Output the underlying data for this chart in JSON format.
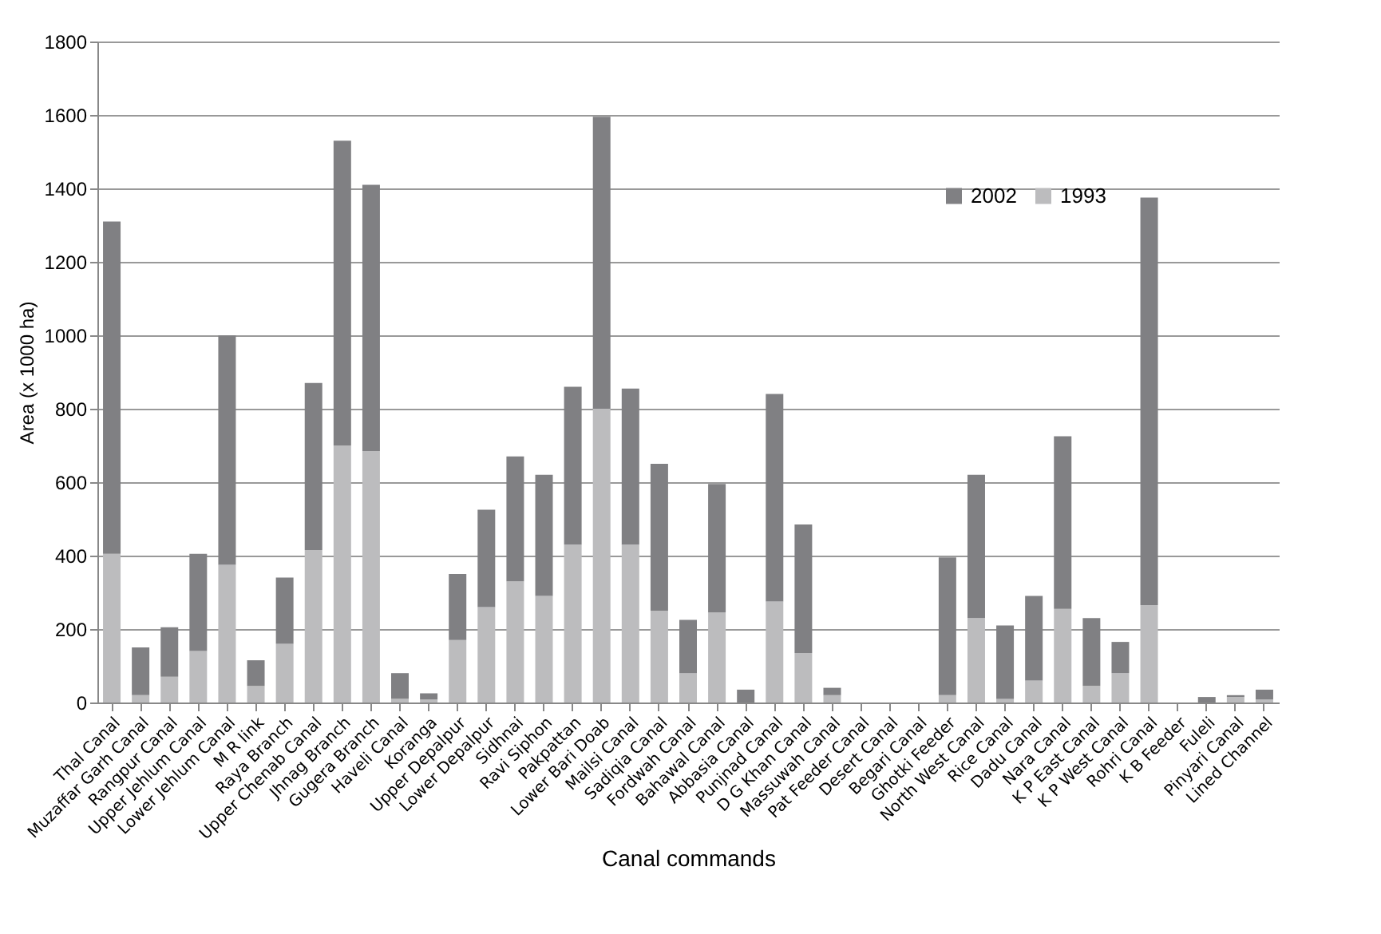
{
  "chart_data": {
    "type": "bar",
    "stacked": true,
    "xlabel": "Canal commands",
    "ylabel": "Area (x 1000 ha)",
    "categories": [
      "Thal Canal",
      "Muzaffar Garh Canal",
      "Rangpur Canal",
      "Upper Jehlum Canal",
      "Lower Jehlum Canal",
      "M R link",
      "Raya Branch",
      "Upper Chenab Canal",
      "Jhnag Branch",
      "Gugera Branch",
      "Haveli Canal",
      "Koranga",
      "Upper Depalpur",
      "Lower Depalpur",
      "Sidhnai",
      "Ravi Siphon",
      "Pakpattan",
      "Lower Bari Doab",
      "Mailsi Canal",
      "Sadiqia Canal",
      "Fordwah Canal",
      "Bahawal Canal",
      "Abbasia Canal",
      "Punjnad Canal",
      "D G Khan Canal",
      "Massuwah Canal",
      "Pat Feeder Canal",
      "Desert Canal",
      "Begari Canal",
      "Ghotki Feeder",
      "North West Canal",
      "Rice Canal",
      "Dadu Canal",
      "Nara Canal",
      "K P East Canal",
      "K P West Canal",
      "Rohri Canal",
      "K B Feeder",
      "Fuleli",
      "Pinyari Canal",
      "Lined Channel"
    ],
    "series": [
      {
        "name": "1993",
        "color": "#bcbcbe",
        "values": [
          405,
          20,
          70,
          140,
          375,
          45,
          160,
          415,
          700,
          685,
          10,
          8,
          170,
          260,
          330,
          290,
          430,
          800,
          430,
          250,
          80,
          245,
          0,
          275,
          135,
          20,
          0,
          0,
          0,
          20,
          230,
          10,
          60,
          255,
          45,
          80,
          265,
          0,
          0,
          15,
          8
        ]
      },
      {
        "name": "2002",
        "color": "#808083",
        "values": [
          905,
          130,
          135,
          265,
          625,
          70,
          180,
          455,
          830,
          725,
          70,
          17,
          180,
          265,
          340,
          330,
          430,
          795,
          425,
          400,
          145,
          350,
          35,
          565,
          350,
          20,
          0,
          0,
          0,
          375,
          390,
          200,
          230,
          470,
          185,
          85,
          1110,
          0,
          15,
          5,
          27
        ]
      }
    ],
    "ylim": [
      0,
      1800
    ],
    "yticks": [
      0,
      200,
      400,
      600,
      800,
      1000,
      1200,
      1400,
      1600,
      1800
    ],
    "grid": "y",
    "legend": "top right"
  }
}
